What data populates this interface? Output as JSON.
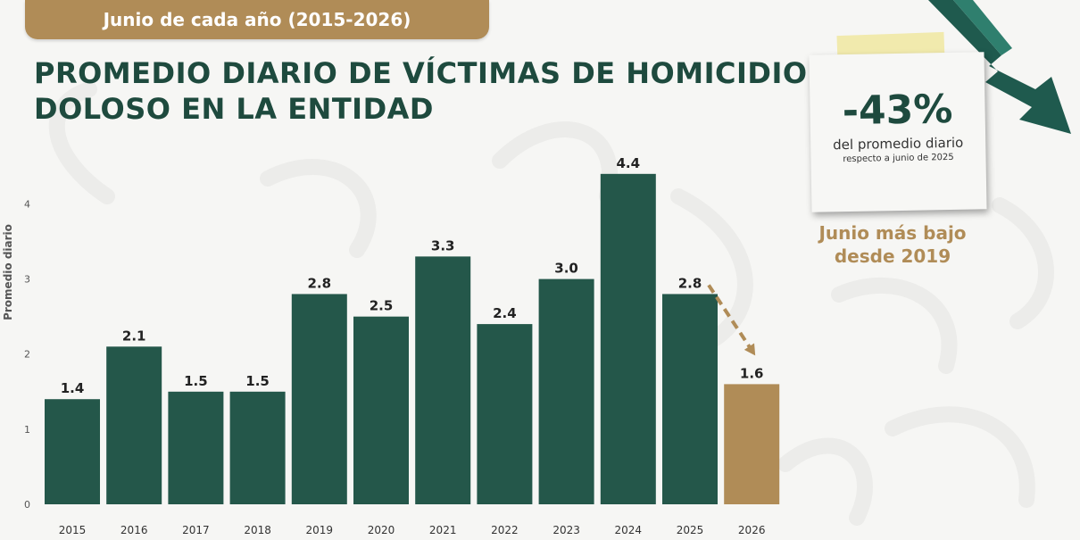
{
  "banner": {
    "text": "Junio de cada año (2015-2026)"
  },
  "title": {
    "line1": "PROMEDIO DIARIO DE VÍCTIMAS DE HOMICIDIO",
    "line2": "DOLOSO EN LA ENTIDAD"
  },
  "callout": {
    "percent": "-43%",
    "line1": "del promedio diario",
    "line2": "respecto a junio de 2025",
    "highlight_line1": "Junio más bajo",
    "highlight_line2": "desde 2019"
  },
  "colors": {
    "bar": "#24574a",
    "highlight_bar": "#b08c57",
    "title": "#1e4a3e",
    "accent": "#b08c57"
  },
  "chart_data": {
    "type": "bar",
    "title": "PROMEDIO DIARIO DE VÍCTIMAS DE HOMICIDIO DOLOSO EN LA ENTIDAD",
    "subtitle": "Junio de cada año (2015-2026)",
    "ylabel": "Promedio diario",
    "xlabel": "",
    "categories": [
      "2015",
      "2016",
      "2017",
      "2018",
      "2019",
      "2020",
      "2021",
      "2022",
      "2023",
      "2024",
      "2025",
      "2026"
    ],
    "values": [
      1.4,
      2.1,
      1.5,
      1.5,
      2.8,
      2.5,
      3.3,
      2.4,
      3.0,
      4.4,
      2.8,
      1.6
    ],
    "value_labels": [
      "1.4",
      "2.1",
      "1.5",
      "1.5",
      "2.8",
      "2.5",
      "3.3",
      "2.4",
      "3.0",
      "4.4",
      "2.8",
      "1.6"
    ],
    "highlight_category": "2026",
    "ylim": [
      0,
      4.6
    ],
    "yticks": [
      0,
      1,
      2,
      3,
      4
    ],
    "grid": false,
    "legend": "none"
  }
}
